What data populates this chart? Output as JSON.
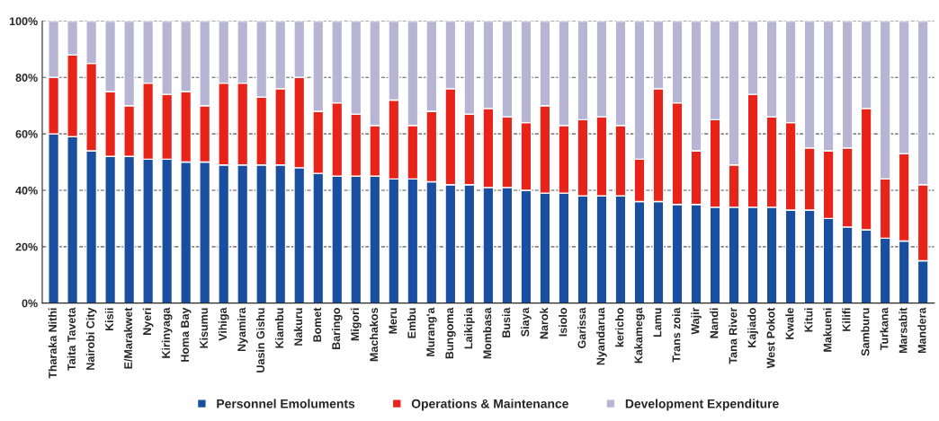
{
  "chart_data": {
    "type": "bar",
    "stacked": true,
    "categories": [
      "Tharaka Nithi",
      "Taita Taveta",
      "Nairobi City",
      "Kisii",
      "E/Marakwet",
      "Nyeri",
      "Kirinyaga",
      "Homa Bay",
      "Kisumu",
      "Vihiga",
      "Nyamira",
      "Uasin Gishu",
      "Kiambu",
      "Nakuru",
      "Bomet",
      "Baringo",
      "Migori",
      "Machakos",
      "Meru",
      "Embu",
      "Murang'a",
      "Bungoma",
      "Laikipia",
      "Mombasa",
      "Busia",
      "Siaya",
      "Narok",
      "Isiolo",
      "Garissa",
      "Nyandarua",
      "kericho",
      "Kakamega",
      "Lamu",
      "Trans zoia",
      "Wajir",
      "Nandi",
      "Tana River",
      "Kajiado",
      "West Pokot",
      "Kwale",
      "Kitui",
      "Makueni",
      "Kilifi",
      "Samburu",
      "Turkana",
      "Marsabit",
      "Mandera"
    ],
    "series": [
      {
        "name": "Personnel Emoluments",
        "color": "#1a4fa0",
        "values": [
          60,
          59,
          54,
          52,
          52,
          51,
          51,
          50,
          50,
          49,
          49,
          49,
          49,
          48,
          46,
          45,
          45,
          45,
          44,
          44,
          43,
          42,
          42,
          41,
          41,
          40,
          39,
          39,
          38,
          38,
          38,
          36,
          36,
          35,
          35,
          34,
          34,
          34,
          34,
          33,
          33,
          30,
          27,
          26,
          23,
          22,
          15
        ]
      },
      {
        "name": "Operations & Maintenance",
        "color": "#e8231a",
        "values": [
          20,
          29,
          31,
          23,
          18,
          27,
          23,
          25,
          20,
          29,
          29,
          24,
          27,
          32,
          22,
          26,
          22,
          18,
          28,
          19,
          25,
          34,
          25,
          28,
          25,
          24,
          31,
          24,
          27,
          28,
          25,
          15,
          40,
          36,
          19,
          31,
          15,
          40,
          32,
          31,
          22,
          24,
          28,
          43,
          21,
          31,
          27
        ]
      },
      {
        "name": "Development Expenditure",
        "color": "#b7b4d4",
        "values": [
          20,
          12,
          15,
          25,
          30,
          22,
          26,
          25,
          30,
          22,
          22,
          27,
          24,
          20,
          32,
          29,
          33,
          37,
          28,
          37,
          32,
          24,
          33,
          31,
          34,
          36,
          30,
          37,
          35,
          34,
          37,
          49,
          24,
          29,
          46,
          35,
          51,
          26,
          34,
          36,
          45,
          46,
          45,
          31,
          56,
          47,
          58
        ]
      }
    ],
    "ylim": [
      0,
      100
    ],
    "yticks": [
      {
        "value": 0,
        "label": "0%"
      },
      {
        "value": 20,
        "label": "20%"
      },
      {
        "value": 40,
        "label": "40%"
      },
      {
        "value": 60,
        "label": "60%"
      },
      {
        "value": 80,
        "label": "80%"
      },
      {
        "value": 100,
        "label": "100%"
      }
    ],
    "grid": "y",
    "legend": "bottom"
  }
}
